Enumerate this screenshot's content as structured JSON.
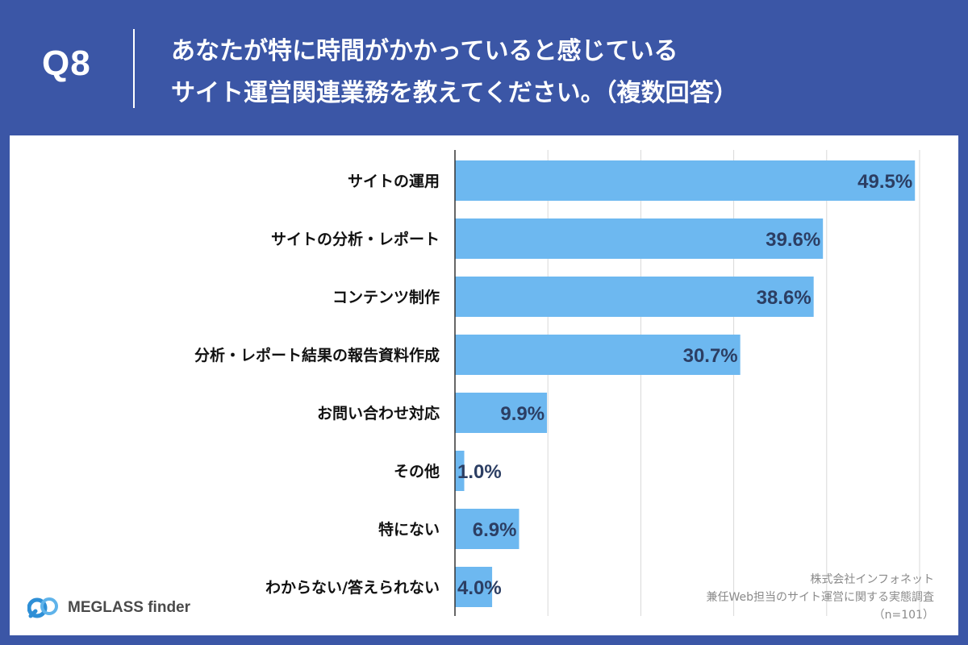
{
  "header": {
    "question_number": "Q8",
    "title_line1": "あなたが特に時間がかかっていると感じている",
    "title_line2": "サイト運営関連業務を教えてください。（複数回答）"
  },
  "chart_data": {
    "type": "bar",
    "orientation": "horizontal",
    "categories": [
      "サイトの運用",
      "サイトの分析・レポート",
      "コンテンツ制作",
      "分析・レポート結果の報告資料作成",
      "お問い合わせ対応",
      "その他",
      "特にない",
      "わからない/答えられない"
    ],
    "values": [
      49.5,
      39.6,
      38.6,
      30.7,
      9.9,
      1.0,
      6.9,
      4.0
    ],
    "value_labels": [
      "49.5%",
      "39.6%",
      "38.6%",
      "30.7%",
      "9.9%",
      "1.0%",
      "6.9%",
      "4.0%"
    ],
    "xlim": [
      0,
      50
    ],
    "grid": true,
    "bar_color": "#6db8f0"
  },
  "source": {
    "company": "株式会社インフォネット",
    "survey": "兼任Web担当のサイト運営に関する実態調査",
    "sample": "（n=101）"
  },
  "logo": {
    "text": "MEGLASS finder"
  },
  "colors": {
    "background": "#3b56a6",
    "bar": "#6db8f0",
    "value_text": "#2c3e63"
  }
}
